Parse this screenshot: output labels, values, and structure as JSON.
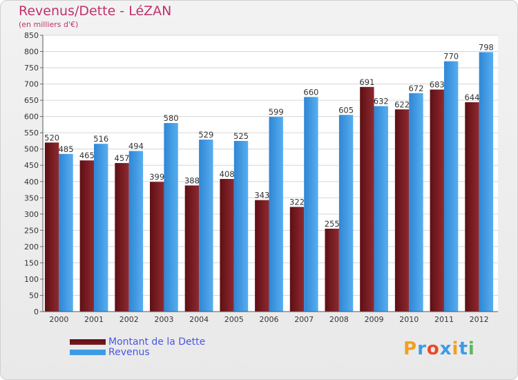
{
  "chart_data": {
    "type": "bar",
    "title": "Revenus/Dette - LéZAN",
    "subtitle": "(en milliers d'€)",
    "categories": [
      "2000",
      "2001",
      "2002",
      "2003",
      "2004",
      "2005",
      "2006",
      "2007",
      "2008",
      "2009",
      "2010",
      "2011",
      "2012"
    ],
    "series": [
      {
        "name": "Montant de la Dette",
        "color": "#7a1a1f",
        "values": [
          520,
          465,
          457,
          399,
          388,
          408,
          343,
          322,
          255,
          691,
          622,
          683,
          644
        ]
      },
      {
        "name": "Revenus",
        "color": "#3d9be6",
        "values": [
          485,
          516,
          494,
          580,
          529,
          525,
          599,
          660,
          605,
          632,
          672,
          770,
          798
        ]
      }
    ],
    "ylim": [
      0,
      850
    ],
    "ytick_step": 50,
    "grid": true,
    "legend": "bottom-left"
  },
  "logo": {
    "text": "Proxiti",
    "letters": [
      "P",
      "r",
      "o",
      "x",
      "i",
      "t",
      "i"
    ],
    "colors": [
      "#f0a020",
      "#3d9be6",
      "#e84a2e",
      "#3d9be6",
      "#f0a020",
      "#3d9be6",
      "#5cb85c"
    ]
  }
}
